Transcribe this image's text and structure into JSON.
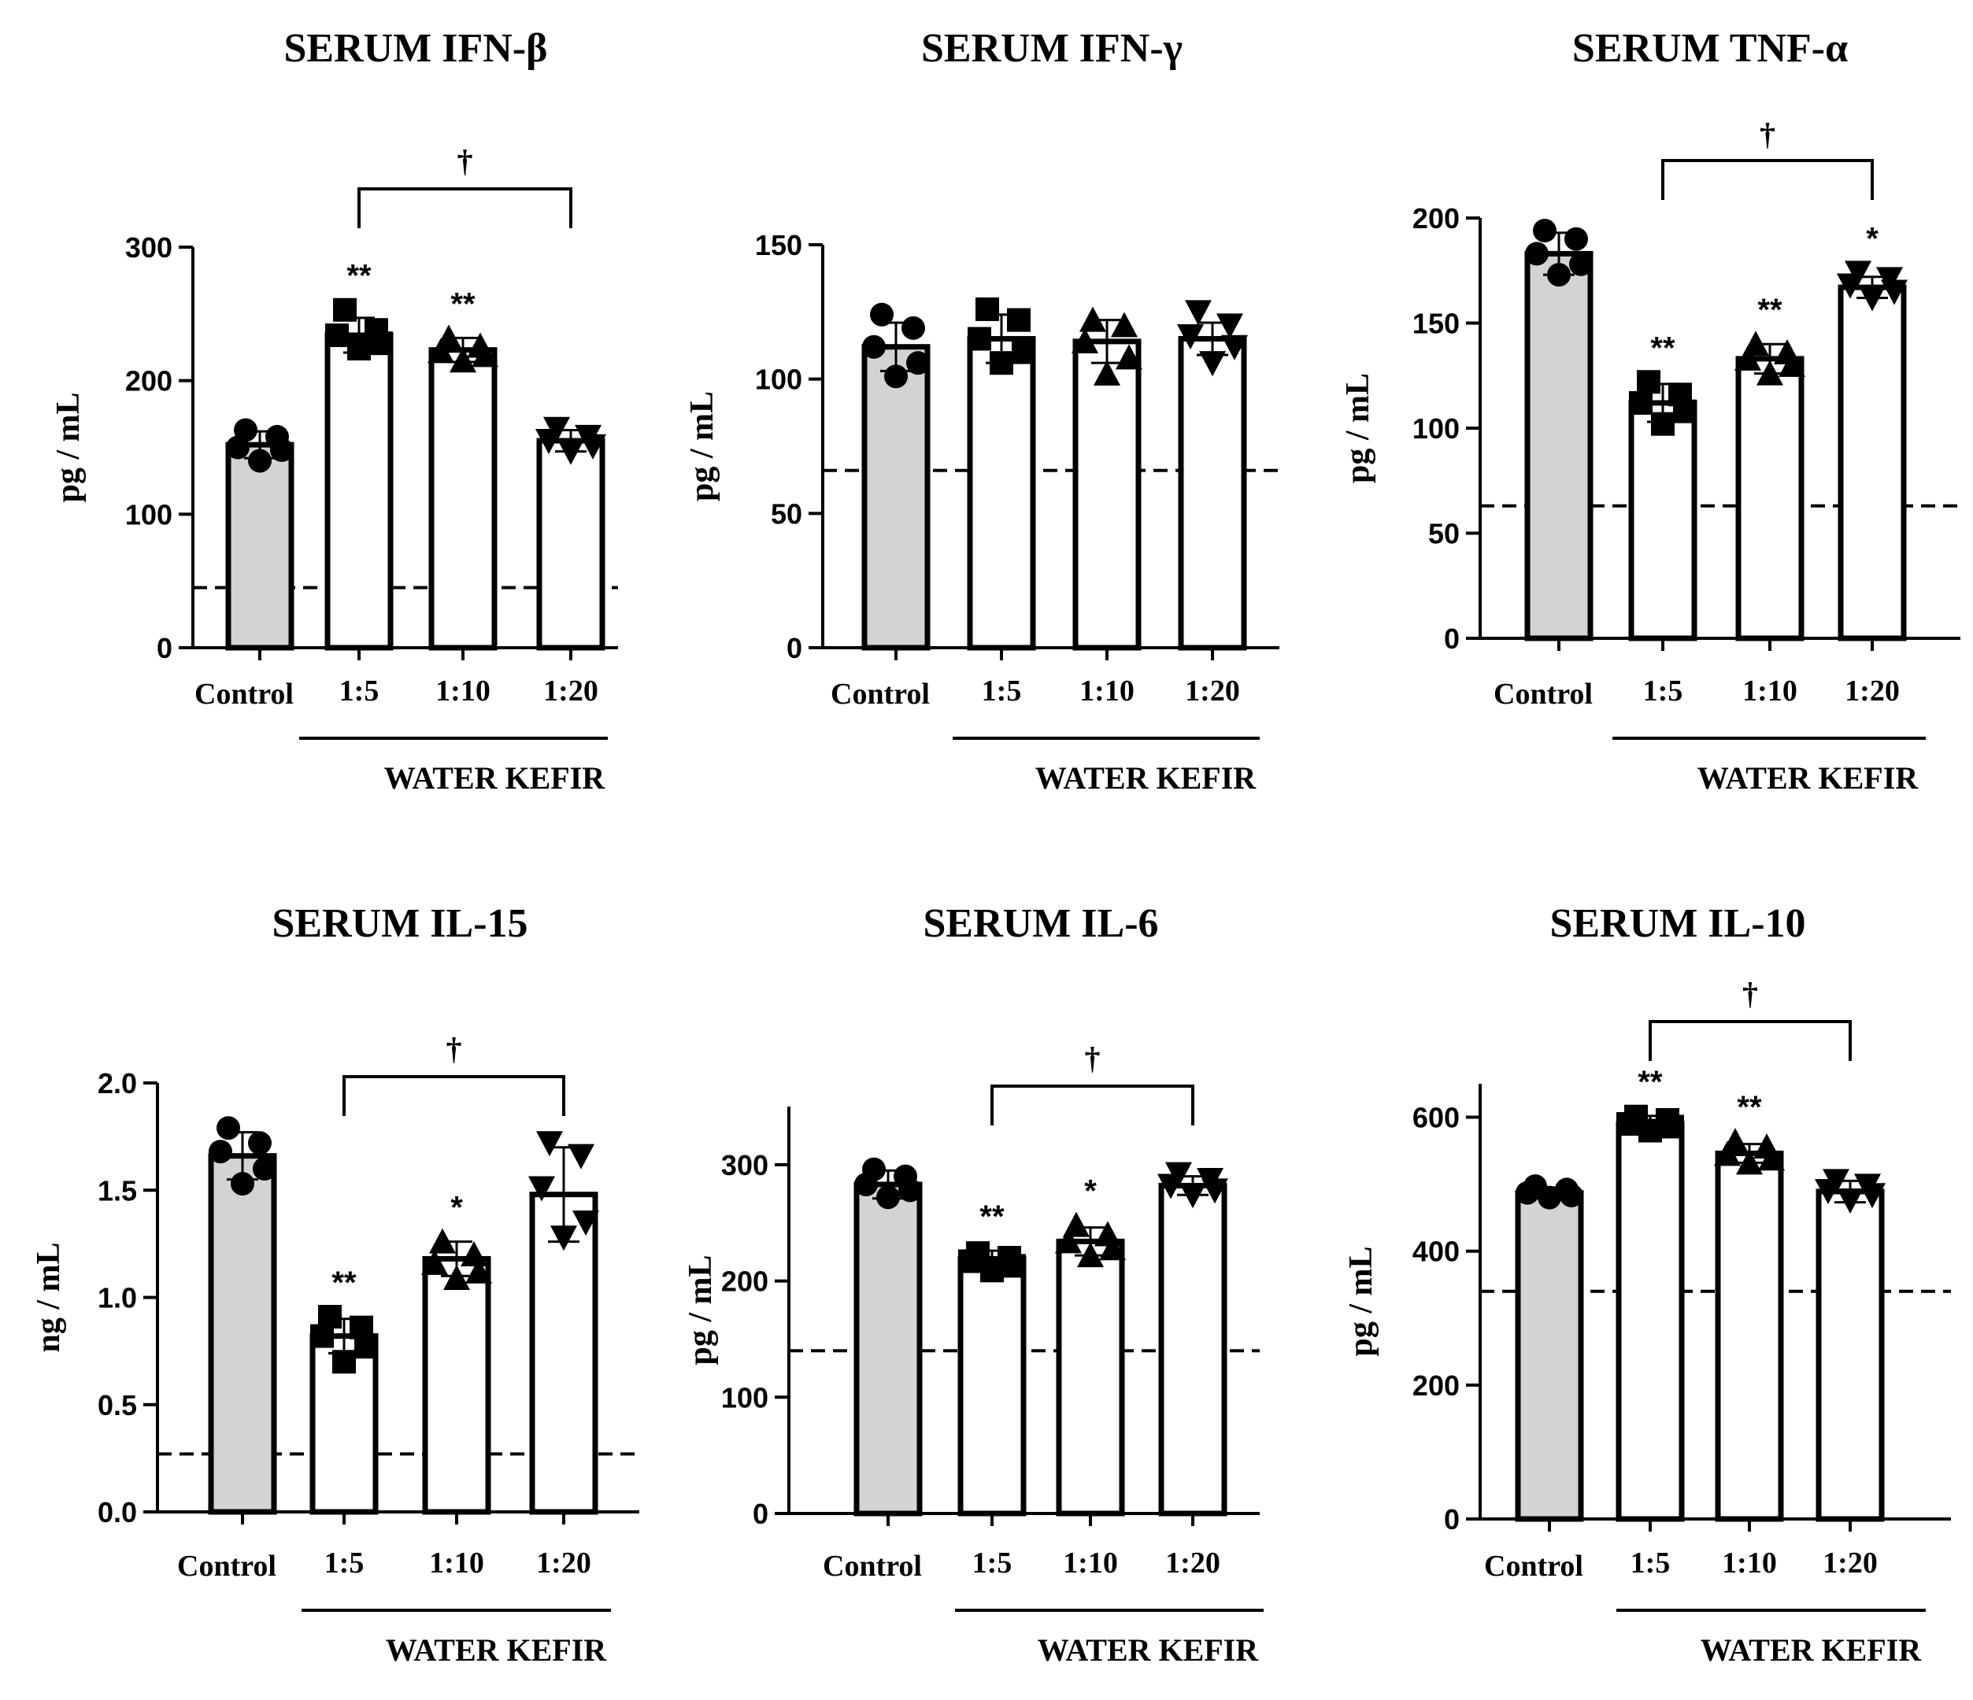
{
  "figure": {
    "categories": [
      "Control",
      "1:5",
      "1:10",
      "1:20"
    ],
    "group_label": "WATER KEFIR",
    "colors": {
      "control_fill": "#d3d3d3",
      "treatment_fill": "#ffffff",
      "ink": "#000000"
    }
  },
  "chart_data": [
    {
      "type": "bar",
      "title": "SERUM IFN-β",
      "ylabel": "pg / mL",
      "ylim": [
        0,
        300
      ],
      "yticks": [
        "0",
        "100",
        "200",
        "300"
      ],
      "ytick_values": [
        0,
        100,
        200,
        300
      ],
      "categories": [
        "Control",
        "1:5",
        "1:10",
        "1:20"
      ],
      "values": [
        152,
        234,
        223,
        155
      ],
      "errors": [
        10,
        13,
        9,
        8
      ],
      "points": [
        [
          163,
          158,
          150,
          148,
          140
        ],
        [
          253,
          238,
          234,
          228,
          224
        ],
        [
          232,
          226,
          222,
          219,
          215
        ],
        [
          164,
          158,
          155,
          151,
          147
        ]
      ],
      "markers": [
        "circle",
        "square",
        "triangle-up",
        "triangle-down"
      ],
      "threshold": 45,
      "significance": [
        "",
        "**",
        "**",
        ""
      ],
      "bracket": {
        "from": 1,
        "to": 3,
        "label": "†"
      }
    },
    {
      "type": "bar",
      "title": "SERUM IFN-γ",
      "ylabel": "pg / mL",
      "ylim": [
        0,
        150
      ],
      "yticks": [
        "0",
        "50",
        "100",
        "150"
      ],
      "ytick_values": [
        0,
        50,
        100,
        150
      ],
      "categories": [
        "Control",
        "1:5",
        "1:10",
        "1:20"
      ],
      "values": [
        112,
        115,
        114,
        115
      ],
      "errors": [
        9,
        9,
        8,
        6
      ],
      "points": [
        [
          124,
          119,
          112,
          106,
          101
        ],
        [
          126,
          122,
          115,
          110,
          106
        ],
        [
          122,
          120,
          114,
          108,
          102
        ],
        [
          125,
          120,
          116,
          112,
          106
        ]
      ],
      "markers": [
        "circle",
        "square",
        "triangle-up",
        "triangle-down"
      ],
      "threshold": 66,
      "significance": [
        "",
        "",
        "",
        ""
      ],
      "bracket": null
    },
    {
      "type": "bar",
      "title": "SERUM TNF-α",
      "ylabel": "pg / mL",
      "ylim": [
        0,
        200
      ],
      "yticks": [
        "0",
        "50",
        "100",
        "150",
        "200"
      ],
      "ytick_values": [
        0,
        50,
        100,
        150,
        200
      ],
      "categories": [
        "Control",
        "1:5",
        "1:10",
        "1:20"
      ],
      "values": [
        183,
        112,
        133,
        167
      ],
      "errors": [
        10,
        9,
        7,
        5
      ],
      "points": [
        [
          194,
          190,
          183,
          178,
          173
        ],
        [
          122,
          116,
          112,
          108,
          102
        ],
        [
          140,
          136,
          133,
          130,
          126
        ],
        [
          174,
          171,
          168,
          165,
          162
        ]
      ],
      "markers": [
        "circle",
        "square",
        "triangle-up",
        "triangle-down"
      ],
      "threshold": 63,
      "significance": [
        "",
        "**",
        "**",
        "*"
      ],
      "bracket": {
        "from": 1,
        "to": 3,
        "label": "†"
      }
    },
    {
      "type": "bar",
      "title": "SERUM IL-15",
      "ylabel": "ng / mL",
      "ylim": [
        0,
        2.0
      ],
      "yticks": [
        "0.0",
        "0.5",
        "1.0",
        "1.5",
        "2.0"
      ],
      "ytick_values": [
        0,
        0.5,
        1.0,
        1.5,
        2.0
      ],
      "categories": [
        "Control",
        "1:5",
        "1:10",
        "1:20"
      ],
      "values": [
        1.66,
        0.82,
        1.18,
        1.48
      ],
      "errors": [
        0.11,
        0.08,
        0.08,
        0.22
      ],
      "points": [
        [
          1.79,
          1.72,
          1.68,
          1.6,
          1.53
        ],
        [
          0.91,
          0.86,
          0.82,
          0.77,
          0.7
        ],
        [
          1.26,
          1.2,
          1.16,
          1.12,
          1.09
        ],
        [
          1.72,
          1.66,
          1.51,
          1.35,
          1.28
        ]
      ],
      "markers": [
        "circle",
        "square",
        "triangle-up",
        "triangle-down"
      ],
      "threshold": 0.27,
      "significance": [
        "",
        "**",
        "*",
        ""
      ],
      "bracket": {
        "from": 1,
        "to": 3,
        "label": "†"
      }
    },
    {
      "type": "bar",
      "title": "SERUM IL-6",
      "ylabel": "pg / mL",
      "ylim": [
        0,
        350
      ],
      "yticks": [
        "0",
        "100",
        "200",
        "300"
      ],
      "ytick_values": [
        0,
        100,
        200,
        300
      ],
      "categories": [
        "Control",
        "1:5",
        "1:10",
        "1:20"
      ],
      "values": [
        283,
        219,
        234,
        282
      ],
      "errors": [
        12,
        7,
        12,
        8
      ],
      "points": [
        [
          296,
          290,
          283,
          278,
          272
        ],
        [
          224,
          220,
          217,
          213,
          209
        ],
        [
          248,
          240,
          234,
          228,
          222
        ],
        [
          292,
          287,
          282,
          278,
          274
        ]
      ],
      "markers": [
        "circle",
        "square",
        "triangle-up",
        "triangle-down"
      ],
      "threshold": 140,
      "significance": [
        "",
        "**",
        "*",
        ""
      ],
      "bracket": {
        "from": 1,
        "to": 3,
        "label": "†"
      }
    },
    {
      "type": "bar",
      "title": "SERUM IL-10",
      "ylabel": "pg / mL",
      "ylim": [
        0,
        650
      ],
      "yticks": [
        "0",
        "200",
        "400",
        "600"
      ],
      "ytick_values": [
        0,
        200,
        400,
        600
      ],
      "categories": [
        "Control",
        "1:5",
        "1:10",
        "1:20"
      ],
      "values": [
        487,
        590,
        546,
        489
      ],
      "errors": [
        8,
        12,
        14,
        16
      ],
      "points": [
        [
          497,
          492,
          487,
          483,
          480
        ],
        [
          601,
          596,
          590,
          586,
          580
        ],
        [
          564,
          556,
          545,
          538,
          532
        ],
        [
          505,
          498,
          490,
          484,
          476
        ]
      ],
      "markers": [
        "circle",
        "square",
        "triangle-up",
        "triangle-down"
      ],
      "threshold": 340,
      "significance": [
        "",
        "**",
        "**",
        ""
      ],
      "bracket": {
        "from": 1,
        "to": 3,
        "label": "†"
      }
    }
  ]
}
